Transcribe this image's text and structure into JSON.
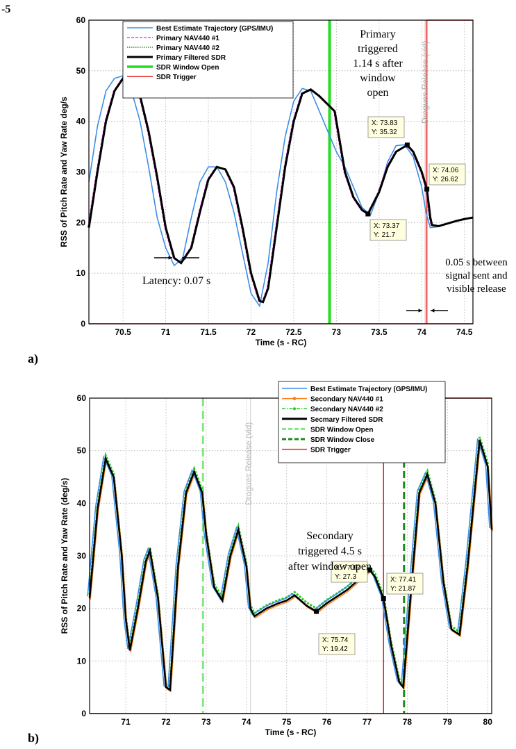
{
  "figure": {
    "fig_label": "-5",
    "panel_a_label": "a)",
    "panel_b_label": "b)"
  },
  "chart_data": [
    {
      "type": "line",
      "panel": "a)",
      "xlabel": "Time (s - RC)",
      "ylabel": "RSS of Pitch Rate and Yaw Rate deg/s",
      "xlim": [
        70.1,
        74.6
      ],
      "ylim": [
        0,
        60
      ],
      "xticks": [
        "70.5",
        "71",
        "71.5",
        "72",
        "72.5",
        "73",
        "73.5",
        "74",
        "74.5"
      ],
      "yticks": [
        "0",
        "10",
        "20",
        "30",
        "40",
        "50",
        "60"
      ],
      "grid": true,
      "legend_position": "top-left",
      "legend": [
        {
          "label": "Best Estimate Trajectory (GPS/IMU)",
          "color": "#3a8ee6",
          "style": "solid"
        },
        {
          "label": "Primary NAV440 #1",
          "color": "#e040e0",
          "style": "dashed"
        },
        {
          "label": "Primary NAV440 #2",
          "color": "#2e8b2e",
          "style": "dotted"
        },
        {
          "label": "Primary Filtered SDR",
          "color": "#000000",
          "style": "solid"
        },
        {
          "label": "SDR Window Open",
          "color": "#22dd22",
          "style": "solid"
        },
        {
          "label": "SDR Trigger",
          "color": "#e02020",
          "style": "solid"
        }
      ],
      "series": [
        {
          "name": "Best Estimate Trajectory (GPS/IMU)",
          "x": [
            70.1,
            70.2,
            70.3,
            70.4,
            70.5,
            70.6,
            70.7,
            70.8,
            70.9,
            71.0,
            71.1,
            71.2,
            71.3,
            71.4,
            71.5,
            71.6,
            71.7,
            71.8,
            71.9,
            72.0,
            72.1,
            72.2,
            72.3,
            72.4,
            72.5,
            72.6,
            72.7,
            72.8,
            72.9,
            73.0,
            73.1,
            73.2,
            73.3,
            73.4,
            73.5,
            73.6,
            73.7,
            73.8,
            73.9,
            74.0,
            74.05,
            74.1,
            74.2,
            74.3,
            74.4,
            74.5,
            74.6
          ],
          "y": [
            28,
            39,
            46,
            48.5,
            49,
            46,
            40,
            31,
            21,
            15,
            11.5,
            13,
            21,
            28,
            31,
            31,
            28,
            22,
            14,
            6,
            3.5,
            12,
            26,
            37,
            44,
            46.5,
            46,
            42,
            38,
            34,
            31,
            27,
            23,
            21.5,
            26,
            32,
            35.2,
            35.4,
            33,
            27,
            22,
            19,
            19.2,
            19.8,
            20.3,
            20.6,
            21
          ]
        },
        {
          "name": "Primary Filtered SDR",
          "x": [
            70.1,
            70.2,
            70.3,
            70.4,
            70.5,
            70.6,
            70.7,
            70.8,
            70.9,
            71.0,
            71.1,
            71.18,
            71.3,
            71.4,
            71.5,
            71.6,
            71.7,
            71.8,
            71.9,
            72.0,
            72.1,
            72.14,
            72.2,
            72.3,
            72.4,
            72.5,
            72.6,
            72.7,
            72.8,
            72.92,
            72.92,
            72.98,
            73.1,
            73.2,
            73.3,
            73.37,
            73.5,
            73.6,
            73.7,
            73.83,
            73.9,
            74.0,
            74.06,
            74.1,
            74.12,
            74.2,
            74.3,
            74.4,
            74.5,
            74.6
          ],
          "y": [
            19,
            30,
            40,
            46,
            48.5,
            48.5,
            45,
            38,
            29,
            19,
            13,
            12,
            15,
            22,
            28.5,
            31,
            30.5,
            27,
            19,
            10,
            4.5,
            4.3,
            7,
            19,
            31,
            40,
            45.5,
            46.3,
            45,
            43,
            43,
            42,
            30,
            25,
            22.5,
            21.7,
            26,
            31,
            34,
            35.32,
            34,
            30,
            26.62,
            21,
            19.5,
            19.3,
            19.8,
            20.3,
            20.7,
            21
          ]
        },
        {
          "name": "SDR Window Open",
          "x": [
            72.92,
            72.92
          ],
          "y": [
            0,
            60
          ]
        },
        {
          "name": "SDR Trigger",
          "x": [
            74.06,
            74.06
          ],
          "y": [
            0,
            60
          ]
        }
      ],
      "datatips": [
        {
          "x_label": "X: 73.83",
          "y_label": "Y: 35.32",
          "x": 73.83,
          "y": 35.32
        },
        {
          "x_label": "X: 73.37",
          "y_label": "Y: 21.7",
          "x": 73.37,
          "y": 21.7
        },
        {
          "x_label": "X: 74.06",
          "y_label": "Y: 26.62",
          "x": 74.06,
          "y": 26.62
        }
      ],
      "annotations": {
        "primary_note": [
          "Primary",
          "triggered",
          "1.14 s after",
          "window",
          "open"
        ],
        "latency": "Latency: 0.07 s",
        "signal_note": [
          "0.05 s between",
          "signal sent and",
          "visible release"
        ],
        "drogues": "Drogues Release (vid)"
      }
    },
    {
      "type": "line",
      "panel": "b)",
      "xlabel": "Time (s - RC)",
      "ylabel": "RSS of Pitch Rate and Yaw Rate (deg/s)",
      "xlim": [
        70.1,
        80.1
      ],
      "ylim": [
        0,
        60
      ],
      "xticks": [
        "71",
        "72",
        "73",
        "74",
        "75",
        "76",
        "77",
        "78",
        "79",
        "80"
      ],
      "yticks": [
        "0",
        "10",
        "20",
        "30",
        "40",
        "50",
        "60"
      ],
      "grid": true,
      "legend_position": "top-right",
      "legend": [
        {
          "label": "Best Estimate Trajectory (GPS/IMU)",
          "color": "#3a8ee6",
          "style": "solid"
        },
        {
          "label": "Secondary NAV440 #1",
          "color": "#ff7f1a",
          "style": "dot-marker"
        },
        {
          "label": "Secondary NAV440 #2",
          "color": "#22cc22",
          "style": "dashdot"
        },
        {
          "label": "Secmary Filtered SDR",
          "color": "#000000",
          "style": "solid"
        },
        {
          "label": "SDR Window Open",
          "color": "#80e880",
          "style": "dashed"
        },
        {
          "label": "SDR Window Close",
          "color": "#1a8a1a",
          "style": "dashed"
        },
        {
          "label": "SDR Trigger",
          "color": "#e02020",
          "style": "solid"
        }
      ],
      "series": [
        {
          "name": "Secmary Filtered SDR",
          "x": [
            70.1,
            70.3,
            70.5,
            70.7,
            70.9,
            71.0,
            71.1,
            71.3,
            71.5,
            71.6,
            71.8,
            72.0,
            72.1,
            72.3,
            72.5,
            72.7,
            72.9,
            73.0,
            73.2,
            73.4,
            73.6,
            73.8,
            74.0,
            74.1,
            74.2,
            74.5,
            74.8,
            75.0,
            75.2,
            75.5,
            75.74,
            76.0,
            76.5,
            77.07,
            77.2,
            77.41,
            77.6,
            77.8,
            77.9,
            78.1,
            78.3,
            78.5,
            78.7,
            78.9,
            79.1,
            79.3,
            79.5,
            79.8,
            80.0,
            80.1
          ],
          "y": [
            22,
            39,
            48.5,
            45,
            30,
            18,
            12,
            20,
            29,
            31,
            22,
            5,
            4.5,
            28,
            42,
            46,
            42,
            34,
            24,
            21.5,
            30,
            35,
            28,
            20,
            18.5,
            20,
            21,
            21.5,
            22.5,
            20.5,
            19.42,
            21,
            23.5,
            27.3,
            26,
            21.87,
            13,
            6,
            5,
            24,
            42,
            45.5,
            40,
            25,
            16,
            15,
            28,
            52,
            47,
            35
          ]
        },
        {
          "name": "SDR Window Open",
          "x": [
            72.92,
            72.92
          ],
          "y": [
            0,
            60
          ]
        },
        {
          "name": "SDR Window Close",
          "x": [
            77.92,
            77.92
          ],
          "y": [
            0,
            60
          ]
        },
        {
          "name": "SDR Trigger",
          "x": [
            77.41,
            77.41
          ],
          "y": [
            0,
            60
          ]
        }
      ],
      "datatips": [
        {
          "x_label": "X: 77.07",
          "y_label": "Y: 27.3",
          "x": 77.07,
          "y": 27.3
        },
        {
          "x_label": "X: 75.74",
          "y_label": "Y: 19.42",
          "x": 75.74,
          "y": 19.42
        },
        {
          "x_label": "X: 77.41",
          "y_label": "Y: 21.87",
          "x": 77.41,
          "y": 21.87
        }
      ],
      "annotations": {
        "secondary_note": [
          "Secondary",
          "triggered 4.5 s",
          "after window open"
        ],
        "drogues": "Drogues Release (vid)"
      }
    }
  ]
}
